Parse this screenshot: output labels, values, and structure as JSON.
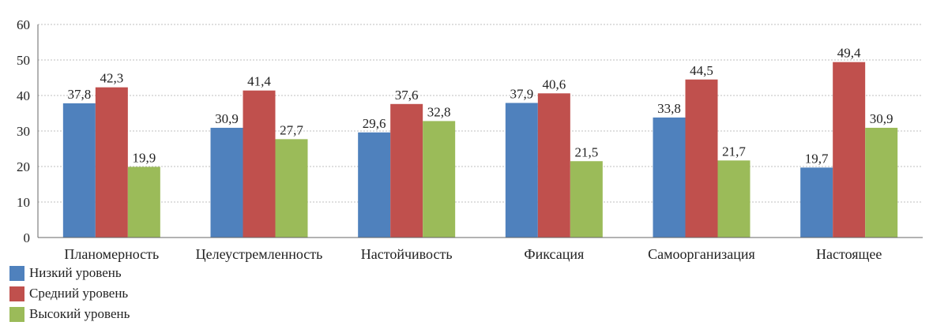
{
  "chart_data": {
    "type": "bar",
    "title": "",
    "xlabel": "",
    "ylabel": "",
    "ylim": [
      0,
      60
    ],
    "yticks": [
      0,
      10,
      20,
      30,
      40,
      50,
      60
    ],
    "grid": true,
    "legend_position": "bottom-left",
    "categories": [
      "Планомерность",
      "Целеустремленность",
      "Настойчивость",
      "Фиксация",
      "Самоорганизация",
      "Настоящее"
    ],
    "series": [
      {
        "name": "Низкий уровень",
        "color": "#4f81bd",
        "values": [
          37.8,
          30.9,
          29.6,
          37.9,
          33.8,
          19.7
        ],
        "labels": [
          "37,8",
          "30,9",
          "29,6",
          "37,9",
          "33,8",
          "19,7"
        ]
      },
      {
        "name": "Средний уровень",
        "color": "#c0504d",
        "values": [
          42.3,
          41.4,
          37.6,
          40.6,
          44.5,
          49.4
        ],
        "labels": [
          "42,3",
          "41,4",
          "37,6",
          "40,6",
          "44,5",
          "49,4"
        ]
      },
      {
        "name": "Высокий уровень",
        "color": "#9bbb59",
        "values": [
          19.9,
          27.7,
          32.8,
          21.5,
          21.7,
          30.9
        ],
        "labels": [
          "19,9",
          "27,7",
          "32,8",
          "21,5",
          "21,7",
          "30,9"
        ]
      }
    ]
  }
}
